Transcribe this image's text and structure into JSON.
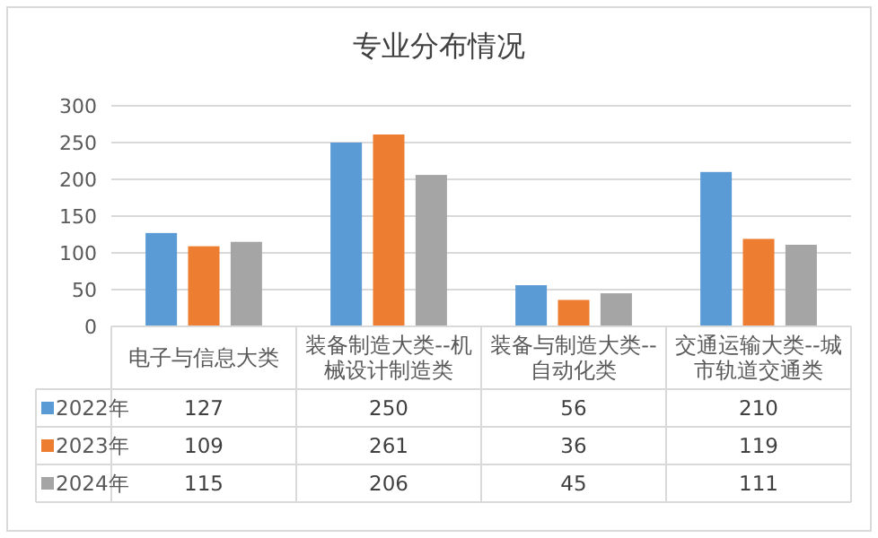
{
  "chart_data": {
    "type": "bar",
    "title": "专业分布情况",
    "categories": [
      "电子与信息大类",
      "装备制造大类--机械设计制造类",
      "装备与制造大类--自动化类",
      "交通运输大类--城市轨道交通类"
    ],
    "series": [
      {
        "name": "2022年",
        "color": "#5b9bd5",
        "values": [
          127,
          250,
          56,
          210
        ]
      },
      {
        "name": "2023年",
        "color": "#ed7d31",
        "values": [
          109,
          261,
          36,
          119
        ]
      },
      {
        "name": "2024年",
        "color": "#a5a5a5",
        "values": [
          115,
          206,
          45,
          111
        ]
      }
    ],
    "ylim": [
      0,
      300
    ],
    "yticks": [
      0,
      50,
      100,
      150,
      200,
      250,
      300
    ],
    "grid": "y",
    "legend": "bottom",
    "data_labels": true
  }
}
